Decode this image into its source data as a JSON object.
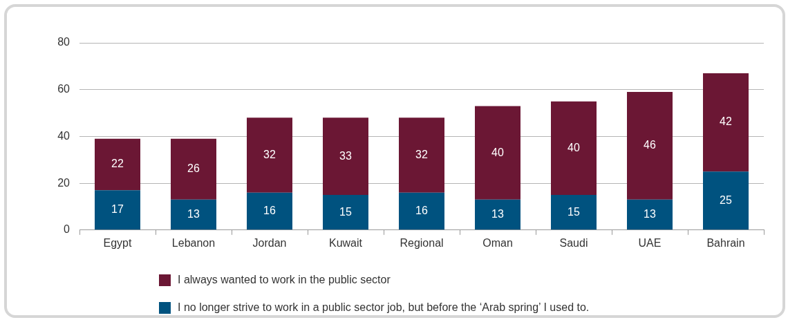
{
  "chart_data": {
    "type": "bar",
    "stacked": true,
    "categories": [
      "Egypt",
      "Lebanon",
      "Jordan",
      "Kuwait",
      "Regional",
      "Oman",
      "Saudi",
      "UAE",
      "Bahrain"
    ],
    "series": [
      {
        "name": "I no longer strive to work in a public sector job, but before the ‘Arab spring’ I used to.",
        "color": "#00527f",
        "values": [
          17,
          13,
          16,
          15,
          16,
          13,
          15,
          13,
          25
        ]
      },
      {
        "name": "I always wanted to work in the public sector",
        "color": "#6b1734",
        "values": [
          22,
          26,
          32,
          33,
          32,
          40,
          40,
          46,
          42
        ]
      }
    ],
    "ylim": [
      0,
      80
    ],
    "yticks": [
      0,
      20,
      40,
      60,
      80
    ],
    "grid": "y",
    "legend": "bottom",
    "data_labels": true
  }
}
